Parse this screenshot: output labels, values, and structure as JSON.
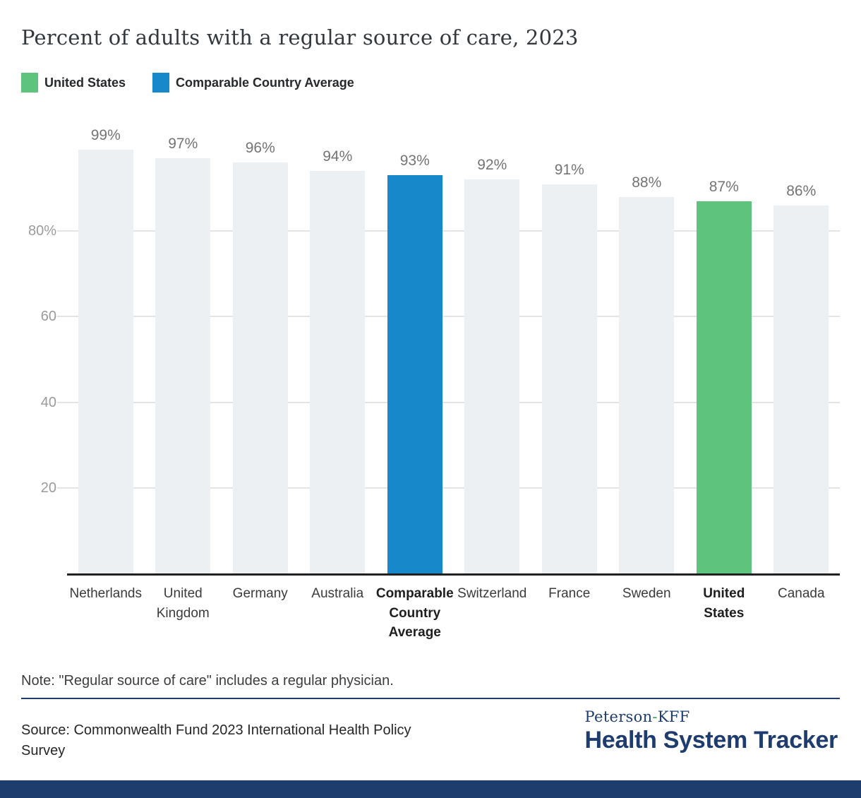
{
  "header": {
    "title": "Percent of adults with a regular source of care, 2023"
  },
  "legend": {
    "items": [
      {
        "label": "United States",
        "color": "#5EC47D"
      },
      {
        "label": "Comparable Country Average",
        "color": "#1789CB"
      }
    ]
  },
  "chart_data": {
    "type": "bar",
    "title": "Percent of adults with a regular source of care, 2023",
    "categories": [
      "Netherlands",
      "United Kingdom",
      "Germany",
      "Australia",
      "Comparable Country Average",
      "Switzerland",
      "France",
      "Sweden",
      "United States",
      "Canada"
    ],
    "values": [
      99,
      97,
      96,
      94,
      93,
      92,
      91,
      88,
      87,
      86
    ],
    "value_labels": [
      "99%",
      "97%",
      "96%",
      "94%",
      "93%",
      "92%",
      "91%",
      "88%",
      "87%",
      "86%"
    ],
    "unit": "%",
    "xlabel": "",
    "ylabel": "",
    "ylim": [
      0,
      100
    ],
    "yticks": [
      {
        "value": 20,
        "label": "20"
      },
      {
        "value": 40,
        "label": "40"
      },
      {
        "value": 60,
        "label": "60"
      },
      {
        "value": 80,
        "label": "80%"
      }
    ],
    "grid": true,
    "legend_position": "top-left",
    "default_bar_color": "#ECF0F3",
    "bar_colors": {
      "4": "#1789CB",
      "8": "#5EC47D"
    },
    "emphasized_categories": [
      4,
      8
    ]
  },
  "note": {
    "text": "Note: \"Regular source of care\" includes a regular physician."
  },
  "source": {
    "text": "Source: Commonwealth Fund 2023 International Health Policy Survey"
  },
  "branding": {
    "name_top_prefix": "Peterson",
    "hyphen": "-",
    "name_top_suffix": "KFF",
    "name_bottom": "Health System Tracker",
    "navy": "#1E3C6E",
    "green_hyphen": "#3D9E5F"
  },
  "colors": {
    "axis_line": "#212121",
    "gridline": "#E4E4E4",
    "tick_label": "#9B9B9B",
    "value_label": "#747474",
    "category_label": "#3B3B3B",
    "category_label_emphasis": "#1E1E1E",
    "title": "#33383D",
    "divider": "#1E3C6E",
    "bottom_bar": "#1D3D6E"
  }
}
